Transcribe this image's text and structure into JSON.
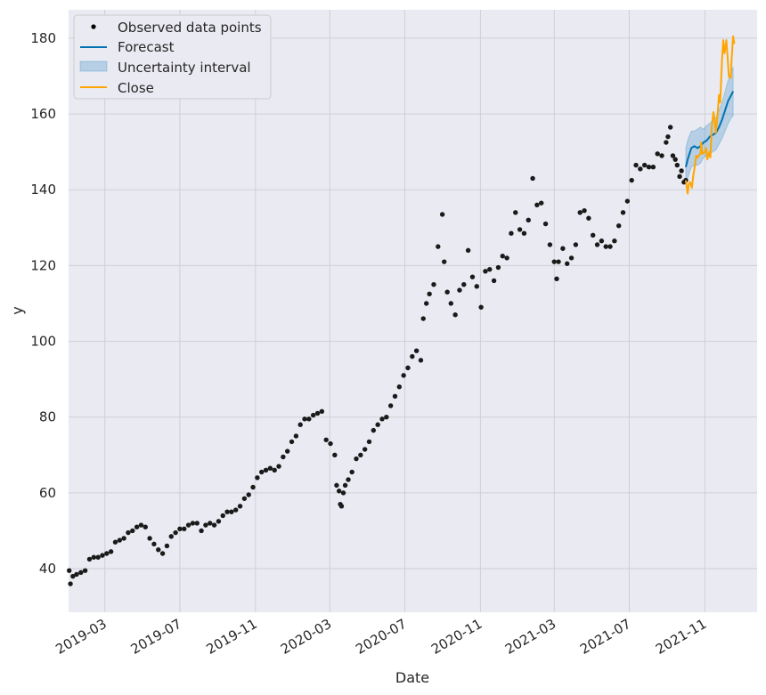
{
  "chart_data": {
    "type": "line",
    "title": "",
    "xlabel": "Date",
    "ylabel": "y",
    "x_range": [
      "2019-01-01",
      "2022-01-25"
    ],
    "ylim": [
      28.5,
      187.5
    ],
    "y_ticks": [
      40,
      60,
      80,
      100,
      120,
      140,
      160,
      180
    ],
    "x_ticks": [
      {
        "date": "2019-03-01",
        "label": "2019-03"
      },
      {
        "date": "2019-07-01",
        "label": "2019-07"
      },
      {
        "date": "2019-11-01",
        "label": "2019-11"
      },
      {
        "date": "2020-03-01",
        "label": "2020-03"
      },
      {
        "date": "2020-07-01",
        "label": "2020-07"
      },
      {
        "date": "2020-11-01",
        "label": "2020-11"
      },
      {
        "date": "2021-03-01",
        "label": "2021-03"
      },
      {
        "date": "2021-07-01",
        "label": "2021-07"
      },
      {
        "date": "2021-11-01",
        "label": "2021-11"
      }
    ],
    "grid": true,
    "legend_position": "top-left",
    "legend": [
      {
        "key": "observed",
        "label": "Observed data points",
        "kind": "dot",
        "color": "#000000"
      },
      {
        "key": "forecast",
        "label": "Forecast",
        "kind": "line",
        "color": "#0072B2"
      },
      {
        "key": "interval",
        "label": "Uncertainty interval",
        "kind": "patch",
        "color": "#0072B2"
      },
      {
        "key": "close",
        "label": "Close",
        "kind": "line",
        "color": "#FFA500"
      }
    ],
    "series": [
      {
        "name": "Observed data points",
        "kind": "scatter",
        "color": "#1a1a1a",
        "points": [
          [
            "2019-01-02",
            39.5
          ],
          [
            "2019-01-04",
            36
          ],
          [
            "2019-01-08",
            38
          ],
          [
            "2019-01-14",
            38.5
          ],
          [
            "2019-01-21",
            39
          ],
          [
            "2019-01-28",
            39.5
          ],
          [
            "2019-02-04",
            42.5
          ],
          [
            "2019-02-11",
            43
          ],
          [
            "2019-02-18",
            43
          ],
          [
            "2019-02-25",
            43.5
          ],
          [
            "2019-03-04",
            44
          ],
          [
            "2019-03-11",
            44.5
          ],
          [
            "2019-03-18",
            47
          ],
          [
            "2019-03-25",
            47.5
          ],
          [
            "2019-04-01",
            48
          ],
          [
            "2019-04-08",
            49.5
          ],
          [
            "2019-04-15",
            50
          ],
          [
            "2019-04-22",
            51
          ],
          [
            "2019-04-29",
            51.5
          ],
          [
            "2019-05-06",
            51
          ],
          [
            "2019-05-13",
            48
          ],
          [
            "2019-05-20",
            46.5
          ],
          [
            "2019-05-27",
            45
          ],
          [
            "2019-06-03",
            44
          ],
          [
            "2019-06-10",
            46
          ],
          [
            "2019-06-17",
            48.5
          ],
          [
            "2019-06-24",
            49.5
          ],
          [
            "2019-07-01",
            50.5
          ],
          [
            "2019-07-08",
            50.5
          ],
          [
            "2019-07-15",
            51.5
          ],
          [
            "2019-07-22",
            52
          ],
          [
            "2019-07-29",
            52
          ],
          [
            "2019-08-05",
            50
          ],
          [
            "2019-08-12",
            51.5
          ],
          [
            "2019-08-19",
            52
          ],
          [
            "2019-08-26",
            51.5
          ],
          [
            "2019-09-02",
            52.5
          ],
          [
            "2019-09-09",
            54
          ],
          [
            "2019-09-16",
            55
          ],
          [
            "2019-09-23",
            55
          ],
          [
            "2019-09-30",
            55.5
          ],
          [
            "2019-10-07",
            56.5
          ],
          [
            "2019-10-14",
            58.5
          ],
          [
            "2019-10-21",
            59.5
          ],
          [
            "2019-10-28",
            61.5
          ],
          [
            "2019-11-04",
            64
          ],
          [
            "2019-11-11",
            65.5
          ],
          [
            "2019-11-18",
            66
          ],
          [
            "2019-11-25",
            66.5
          ],
          [
            "2019-12-02",
            66
          ],
          [
            "2019-12-09",
            67
          ],
          [
            "2019-12-16",
            69.5
          ],
          [
            "2019-12-23",
            71
          ],
          [
            "2019-12-30",
            73.5
          ],
          [
            "2020-01-06",
            75
          ],
          [
            "2020-01-13",
            78
          ],
          [
            "2020-01-20",
            79.5
          ],
          [
            "2020-01-27",
            79.5
          ],
          [
            "2020-02-03",
            80.5
          ],
          [
            "2020-02-10",
            81
          ],
          [
            "2020-02-17",
            81.5
          ],
          [
            "2020-02-24",
            74
          ],
          [
            "2020-03-02",
            73
          ],
          [
            "2020-03-09",
            70
          ],
          [
            "2020-03-12",
            62
          ],
          [
            "2020-03-16",
            60.5
          ],
          [
            "2020-03-18",
            57
          ],
          [
            "2020-03-20",
            56.5
          ],
          [
            "2020-03-23",
            60
          ],
          [
            "2020-03-26",
            62
          ],
          [
            "2020-03-31",
            63.5
          ],
          [
            "2020-04-06",
            65.5
          ],
          [
            "2020-04-13",
            69
          ],
          [
            "2020-04-20",
            70
          ],
          [
            "2020-04-27",
            71.5
          ],
          [
            "2020-05-04",
            73.5
          ],
          [
            "2020-05-11",
            76.5
          ],
          [
            "2020-05-18",
            78
          ],
          [
            "2020-05-25",
            79.5
          ],
          [
            "2020-06-01",
            80
          ],
          [
            "2020-06-08",
            83
          ],
          [
            "2020-06-15",
            85.5
          ],
          [
            "2020-06-22",
            88
          ],
          [
            "2020-06-29",
            91
          ],
          [
            "2020-07-06",
            93
          ],
          [
            "2020-07-13",
            96
          ],
          [
            "2020-07-20",
            97.5
          ],
          [
            "2020-07-27",
            95
          ],
          [
            "2020-07-31",
            106
          ],
          [
            "2020-08-05",
            110
          ],
          [
            "2020-08-10",
            112.5
          ],
          [
            "2020-08-17",
            115
          ],
          [
            "2020-08-24",
            125
          ],
          [
            "2020-08-31",
            133.5
          ],
          [
            "2020-09-03",
            121
          ],
          [
            "2020-09-08",
            113
          ],
          [
            "2020-09-14",
            110
          ],
          [
            "2020-09-21",
            107
          ],
          [
            "2020-09-28",
            113.5
          ],
          [
            "2020-10-05",
            115
          ],
          [
            "2020-10-12",
            124
          ],
          [
            "2020-10-19",
            117
          ],
          [
            "2020-10-26",
            114.5
          ],
          [
            "2020-11-02",
            109
          ],
          [
            "2020-11-09",
            118.5
          ],
          [
            "2020-11-16",
            119
          ],
          [
            "2020-11-23",
            116
          ],
          [
            "2020-11-30",
            119.5
          ],
          [
            "2020-12-07",
            122.5
          ],
          [
            "2020-12-14",
            122
          ],
          [
            "2020-12-21",
            128.5
          ],
          [
            "2020-12-28",
            134
          ],
          [
            "2021-01-04",
            129.5
          ],
          [
            "2021-01-11",
            128.5
          ],
          [
            "2021-01-18",
            132
          ],
          [
            "2021-01-25",
            143
          ],
          [
            "2021-02-01",
            136
          ],
          [
            "2021-02-08",
            136.5
          ],
          [
            "2021-02-15",
            131
          ],
          [
            "2021-02-22",
            125.5
          ],
          [
            "2021-03-01",
            121
          ],
          [
            "2021-03-05",
            116.5
          ],
          [
            "2021-03-08",
            121
          ],
          [
            "2021-03-15",
            124.5
          ],
          [
            "2021-03-22",
            120.5
          ],
          [
            "2021-03-29",
            122
          ],
          [
            "2021-04-05",
            125.5
          ],
          [
            "2021-04-12",
            134
          ],
          [
            "2021-04-19",
            134.5
          ],
          [
            "2021-04-26",
            132.5
          ],
          [
            "2021-05-03",
            128
          ],
          [
            "2021-05-10",
            125.5
          ],
          [
            "2021-05-17",
            126.5
          ],
          [
            "2021-05-24",
            125
          ],
          [
            "2021-05-31",
            125
          ],
          [
            "2021-06-07",
            126.5
          ],
          [
            "2021-06-14",
            130.5
          ],
          [
            "2021-06-21",
            134
          ],
          [
            "2021-06-28",
            137
          ],
          [
            "2021-07-05",
            142.5
          ],
          [
            "2021-07-12",
            146.5
          ],
          [
            "2021-07-19",
            145.5
          ],
          [
            "2021-07-26",
            146.5
          ],
          [
            "2021-08-02",
            146
          ],
          [
            "2021-08-09",
            146
          ],
          [
            "2021-08-16",
            149.5
          ],
          [
            "2021-08-23",
            149
          ],
          [
            "2021-08-30",
            152.5
          ],
          [
            "2021-09-02",
            154
          ],
          [
            "2021-09-06",
            156.5
          ],
          [
            "2021-09-10",
            149
          ],
          [
            "2021-09-14",
            148
          ],
          [
            "2021-09-17",
            146.5
          ],
          [
            "2021-09-21",
            143.5
          ],
          [
            "2021-09-24",
            145
          ],
          [
            "2021-09-28",
            142
          ],
          [
            "2021-10-01",
            142.5
          ]
        ]
      },
      {
        "name": "Forecast",
        "kind": "line",
        "color": "#0072B2",
        "points": [
          [
            "2021-10-01",
            146
          ],
          [
            "2021-10-05",
            148.5
          ],
          [
            "2021-10-10",
            151
          ],
          [
            "2021-10-15",
            151.5
          ],
          [
            "2021-10-20",
            151
          ],
          [
            "2021-10-25",
            151.5
          ],
          [
            "2021-10-30",
            152.5
          ],
          [
            "2021-11-04",
            153
          ],
          [
            "2021-11-09",
            154
          ],
          [
            "2021-11-14",
            154.5
          ],
          [
            "2021-11-19",
            155
          ],
          [
            "2021-11-24",
            156.5
          ],
          [
            "2021-11-29",
            158.5
          ],
          [
            "2021-12-04",
            161
          ],
          [
            "2021-12-09",
            163.5
          ],
          [
            "2021-12-14",
            165
          ],
          [
            "2021-12-17",
            166
          ]
        ]
      },
      {
        "name": "Uncertainty interval",
        "kind": "band",
        "color": "#0072B2",
        "opacity": 0.22,
        "upper": [
          [
            "2021-10-01",
            151
          ],
          [
            "2021-10-05",
            153.5
          ],
          [
            "2021-10-10",
            155.5
          ],
          [
            "2021-10-15",
            155.5
          ],
          [
            "2021-10-20",
            156
          ],
          [
            "2021-10-25",
            156.5
          ],
          [
            "2021-10-30",
            156
          ],
          [
            "2021-11-04",
            157
          ],
          [
            "2021-11-09",
            157.5
          ],
          [
            "2021-11-14",
            158.5
          ],
          [
            "2021-11-19",
            159
          ],
          [
            "2021-11-24",
            161
          ],
          [
            "2021-11-29",
            163
          ],
          [
            "2021-12-04",
            166
          ],
          [
            "2021-12-09",
            169
          ],
          [
            "2021-12-14",
            171
          ],
          [
            "2021-12-17",
            172.5
          ]
        ],
        "lower": [
          [
            "2021-10-01",
            141.5
          ],
          [
            "2021-10-05",
            143.5
          ],
          [
            "2021-10-10",
            146
          ],
          [
            "2021-10-15",
            146.5
          ],
          [
            "2021-10-20",
            146.5
          ],
          [
            "2021-10-25",
            147
          ],
          [
            "2021-10-30",
            148.5
          ],
          [
            "2021-11-04",
            149
          ],
          [
            "2021-11-09",
            149.5
          ],
          [
            "2021-11-14",
            150
          ],
          [
            "2021-11-19",
            150.5
          ],
          [
            "2021-11-24",
            152
          ],
          [
            "2021-11-29",
            153.5
          ],
          [
            "2021-12-04",
            155.5
          ],
          [
            "2021-12-09",
            157.5
          ],
          [
            "2021-12-14",
            159
          ],
          [
            "2021-12-17",
            159.5
          ]
        ]
      },
      {
        "name": "Close",
        "kind": "line",
        "color": "#FFA500",
        "points": [
          [
            "2021-10-01",
            142.5
          ],
          [
            "2021-10-04",
            139
          ],
          [
            "2021-10-06",
            141.5
          ],
          [
            "2021-10-08",
            142
          ],
          [
            "2021-10-11",
            140.5
          ],
          [
            "2021-10-13",
            143.5
          ],
          [
            "2021-10-15",
            145.5
          ],
          [
            "2021-10-18",
            149
          ],
          [
            "2021-10-20",
            148.5
          ],
          [
            "2021-10-22",
            149
          ],
          [
            "2021-10-25",
            149.5
          ],
          [
            "2021-10-26",
            152.5
          ],
          [
            "2021-10-28",
            149.5
          ],
          [
            "2021-11-01",
            150
          ],
          [
            "2021-11-03",
            151
          ],
          [
            "2021-11-05",
            148
          ],
          [
            "2021-11-08",
            150
          ],
          [
            "2021-11-10",
            148.5
          ],
          [
            "2021-11-12",
            156
          ],
          [
            "2021-11-15",
            160.5
          ],
          [
            "2021-11-17",
            158.5
          ],
          [
            "2021-11-19",
            155
          ],
          [
            "2021-11-22",
            160.5
          ],
          [
            "2021-11-24",
            165
          ],
          [
            "2021-11-26",
            163
          ],
          [
            "2021-11-29",
            174.5
          ],
          [
            "2021-12-01",
            179.5
          ],
          [
            "2021-12-03",
            176
          ],
          [
            "2021-12-06",
            179.5
          ],
          [
            "2021-12-08",
            175
          ],
          [
            "2021-12-10",
            170
          ],
          [
            "2021-12-13",
            169.5
          ],
          [
            "2021-12-15",
            175.5
          ],
          [
            "2021-12-17",
            180.5
          ],
          [
            "2021-12-19",
            178.5
          ]
        ]
      }
    ]
  }
}
